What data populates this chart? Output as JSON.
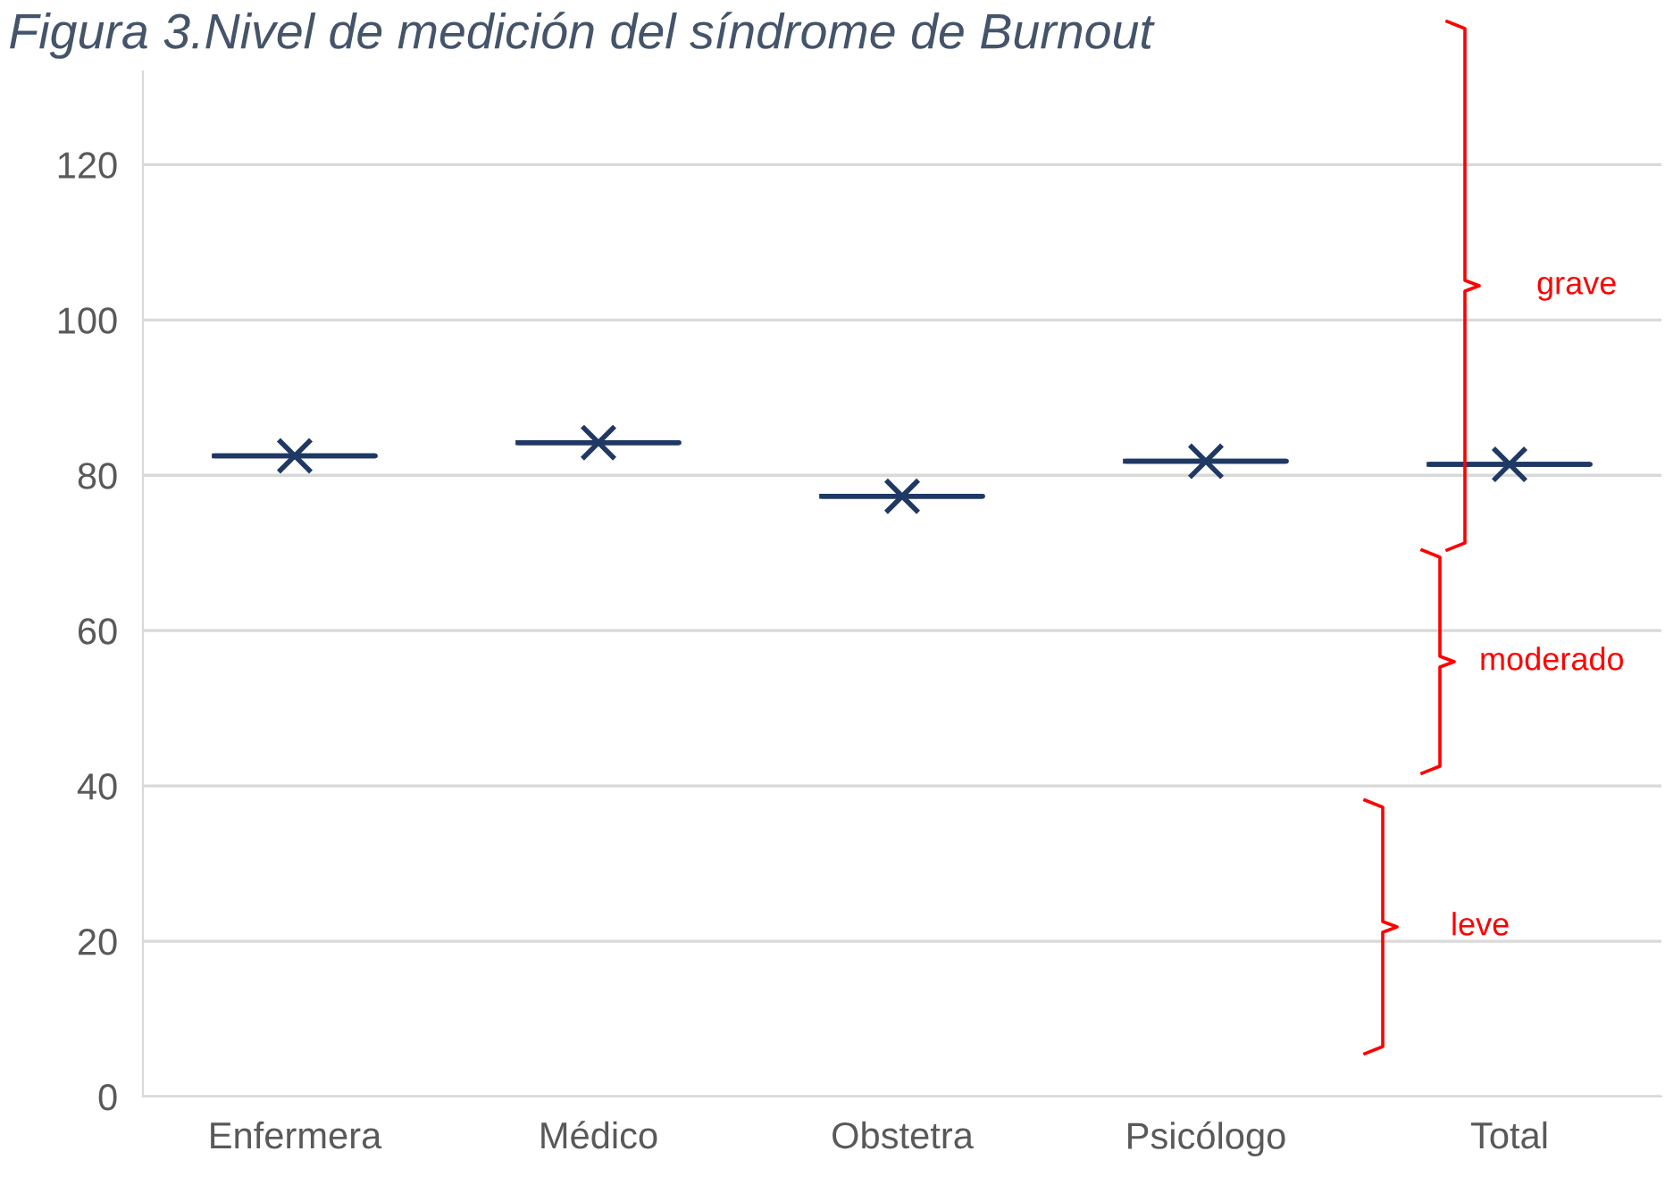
{
  "chart_data": {
    "type": "box",
    "title": "Figura 3.Nivel de medición del síndrome de Burnout",
    "categories": [
      "Enfermera",
      "Médico",
      "Obstetra",
      "Psicólogo",
      "Total"
    ],
    "series": [
      {
        "color": "#1f3864",
        "boxes": [
          {
            "low": 82.5,
            "q1": 82.5,
            "median": 82.5,
            "q3": 82.5,
            "high": 82.5,
            "mean": 82.5
          },
          {
            "low": 84.2,
            "q1": 84.2,
            "median": 84.2,
            "q3": 84.2,
            "high": 84.2,
            "mean": 84.2
          },
          {
            "low": 77.3,
            "q1": 77.3,
            "median": 77.3,
            "q3": 77.3,
            "high": 77.3,
            "mean": 77.3
          },
          {
            "low": 81.8,
            "q1": 81.8,
            "median": 81.8,
            "q3": 81.8,
            "high": 81.8,
            "mean": 81.8
          },
          {
            "low": 81.4,
            "q1": 81.4,
            "median": 81.4,
            "q3": 81.4,
            "high": 81.4,
            "mean": 81.4
          }
        ]
      }
    ],
    "ylim": [
      0,
      132
    ],
    "yticks": [
      0,
      20,
      40,
      60,
      80,
      100,
      120
    ],
    "grid": "y",
    "marker": "cross",
    "annotations": [
      "grave",
      "moderado",
      "leve"
    ]
  }
}
